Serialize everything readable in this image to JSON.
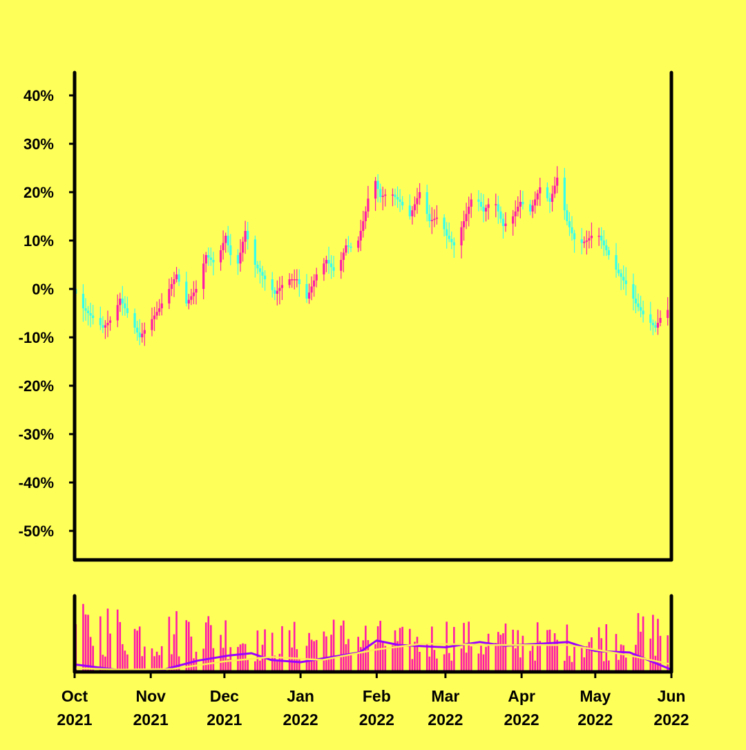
{
  "chart_data": [
    {
      "type": "candlestick",
      "title": "",
      "xlabel": "",
      "ylabel": "",
      "y_unit": "%",
      "ylim": [
        -55,
        45
      ],
      "yticks": [
        40,
        30,
        20,
        10,
        0,
        -10,
        -20,
        -30,
        -40,
        -50
      ],
      "ytick_labels": [
        "40%",
        "30%",
        "20%",
        "10%",
        "0%",
        "-10%",
        "-20%",
        "-30%",
        "-40%",
        "-50%"
      ],
      "x_range": [
        "2021-10-01",
        "2022-06-01"
      ],
      "xtick_labels": [
        {
          "date": "2021-10-01",
          "month": "Oct",
          "year": "2021"
        },
        {
          "date": "2021-11-01",
          "month": "Nov",
          "year": "2021"
        },
        {
          "date": "2021-12-01",
          "month": "Dec",
          "year": "2021"
        },
        {
          "date": "2022-01-01",
          "month": "Jan",
          "year": "2022"
        },
        {
          "date": "2022-02-01",
          "month": "Feb",
          "year": "2022"
        },
        {
          "date": "2022-03-01",
          "month": "Mar",
          "year": "2022"
        },
        {
          "date": "2022-04-01",
          "month": "Apr",
          "year": "2022"
        },
        {
          "date": "2022-05-01",
          "month": "May",
          "year": "2022"
        },
        {
          "date": "2022-06-01",
          "month": "Jun",
          "year": "2022"
        }
      ],
      "grid": false,
      "legend": "none",
      "up_color": "#ff1aa6",
      "down_color": "#33ffee",
      "close_path": [
        [
          "2021-10-01",
          0
        ],
        [
          "2021-10-05",
          -4
        ],
        [
          "2021-10-09",
          -6
        ],
        [
          "2021-10-13",
          -8
        ],
        [
          "2021-10-17",
          -6
        ],
        [
          "2021-10-20",
          -2
        ],
        [
          "2021-10-24",
          -6
        ],
        [
          "2021-10-28",
          -10
        ],
        [
          "2021-11-01",
          -7
        ],
        [
          "2021-11-05",
          -4
        ],
        [
          "2021-11-09",
          0
        ],
        [
          "2021-11-12",
          3
        ],
        [
          "2021-11-16",
          -3
        ],
        [
          "2021-11-20",
          0
        ],
        [
          "2021-11-24",
          7
        ],
        [
          "2021-11-28",
          5
        ],
        [
          "2021-12-02",
          11
        ],
        [
          "2021-12-06",
          3
        ],
        [
          "2021-12-10",
          12
        ],
        [
          "2021-12-14",
          5
        ],
        [
          "2021-12-18",
          2
        ],
        [
          "2021-12-22",
          -1
        ],
        [
          "2021-12-27",
          2
        ],
        [
          "2021-12-31",
          2
        ],
        [
          "2022-01-04",
          -2
        ],
        [
          "2022-01-08",
          3
        ],
        [
          "2022-01-12",
          6
        ],
        [
          "2022-01-16",
          3
        ],
        [
          "2022-01-20",
          9
        ],
        [
          "2022-01-24",
          8
        ],
        [
          "2022-01-28",
          16
        ],
        [
          "2022-01-31",
          24
        ],
        [
          "2022-02-03",
          19
        ],
        [
          "2022-02-07",
          20
        ],
        [
          "2022-02-11",
          18
        ],
        [
          "2022-02-15",
          15
        ],
        [
          "2022-02-19",
          20
        ],
        [
          "2022-02-23",
          14
        ],
        [
          "2022-02-27",
          15
        ],
        [
          "2022-03-02",
          11
        ],
        [
          "2022-03-05",
          9
        ],
        [
          "2022-03-09",
          14
        ],
        [
          "2022-03-13",
          20
        ],
        [
          "2022-03-17",
          16
        ],
        [
          "2022-03-21",
          19
        ],
        [
          "2022-03-25",
          13
        ],
        [
          "2022-03-29",
          15
        ],
        [
          "2022-04-01",
          18
        ],
        [
          "2022-04-05",
          16
        ],
        [
          "2022-04-09",
          21
        ],
        [
          "2022-04-13",
          18
        ],
        [
          "2022-04-16",
          23
        ],
        [
          "2022-04-20",
          14
        ],
        [
          "2022-04-24",
          9
        ],
        [
          "2022-04-28",
          10
        ],
        [
          "2022-05-02",
          12
        ],
        [
          "2022-05-06",
          8
        ],
        [
          "2022-05-10",
          4
        ],
        [
          "2022-05-14",
          1
        ],
        [
          "2022-05-18",
          -3
        ],
        [
          "2022-05-22",
          -6
        ],
        [
          "2022-05-26",
          -8
        ],
        [
          "2022-05-29",
          -5
        ],
        [
          "2022-06-01",
          -4
        ]
      ]
    },
    {
      "type": "bar",
      "title": "",
      "xlabel": "",
      "ylabel": "",
      "bar_color": "#ff1aa6",
      "ylim": [
        0,
        100
      ],
      "volume_path": [
        [
          "2021-10-01",
          70
        ],
        [
          "2021-10-15",
          75
        ],
        [
          "2021-11-01",
          60
        ],
        [
          "2021-11-15",
          70
        ],
        [
          "2021-12-01",
          65
        ],
        [
          "2021-12-15",
          45
        ],
        [
          "2022-01-01",
          55
        ],
        [
          "2022-01-15",
          60
        ],
        [
          "2022-02-01",
          55
        ],
        [
          "2022-02-15",
          45
        ],
        [
          "2022-03-01",
          60
        ],
        [
          "2022-03-15",
          50
        ],
        [
          "2022-04-01",
          55
        ],
        [
          "2022-04-15",
          50
        ],
        [
          "2022-05-01",
          55
        ],
        [
          "2022-05-15",
          60
        ],
        [
          "2022-06-01",
          70
        ]
      ],
      "series": [
        {
          "color": "#9900ff",
          "points": [
            [
              "2021-10-01",
              10
            ],
            [
              "2021-10-20",
              2
            ],
            [
              "2021-11-05",
              2
            ],
            [
              "2021-11-20",
              15
            ],
            [
              "2021-12-03",
              22
            ],
            [
              "2021-12-12",
              25
            ],
            [
              "2021-12-20",
              16
            ],
            [
              "2022-01-01",
              13
            ],
            [
              "2022-01-10",
              18
            ],
            [
              "2022-01-25",
              26
            ],
            [
              "2022-02-01",
              42
            ],
            [
              "2022-02-10",
              36
            ],
            [
              "2022-03-01",
              33
            ],
            [
              "2022-03-15",
              40
            ],
            [
              "2022-03-25",
              35
            ],
            [
              "2022-04-10",
              38
            ],
            [
              "2022-04-20",
              40
            ],
            [
              "2022-05-01",
              28
            ],
            [
              "2022-05-15",
              26
            ],
            [
              "2022-06-01",
              3
            ]
          ]
        },
        {
          "color": "#ffee55",
          "points": [
            [
              "2021-10-01",
              5
            ],
            [
              "2021-10-20",
              3
            ],
            [
              "2021-11-10",
              4
            ],
            [
              "2021-12-01",
              14
            ],
            [
              "2021-12-20",
              20
            ],
            [
              "2022-01-10",
              16
            ],
            [
              "2022-02-01",
              30
            ],
            [
              "2022-02-20",
              38
            ],
            [
              "2022-03-20",
              36
            ],
            [
              "2022-04-20",
              36
            ],
            [
              "2022-05-15",
              22
            ],
            [
              "2022-06-01",
              10
            ]
          ]
        }
      ]
    }
  ]
}
